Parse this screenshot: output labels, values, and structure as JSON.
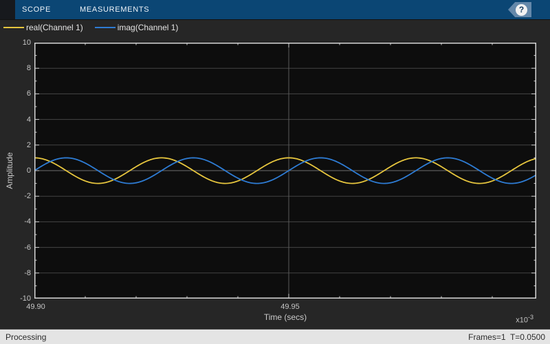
{
  "toolbar": {
    "tabs": [
      {
        "label": "SCOPE"
      },
      {
        "label": "MEASUREMENTS"
      }
    ],
    "help_icon": "?"
  },
  "legend": {
    "items": [
      {
        "label": "real(Channel 1)",
        "color": "#e7c63e"
      },
      {
        "label": "imag(Channel 1)",
        "color": "#2e7cd4"
      }
    ]
  },
  "chart_data": {
    "type": "line",
    "title": "",
    "xlabel": "Time (secs)",
    "ylabel": "Amplitude",
    "x_exponent_base": "x10",
    "x_exponent_power": "-3",
    "xlim_ms": [
      49.9,
      49.99865
    ],
    "ylim": [
      -10,
      10
    ],
    "x_major_ticks_ms": [
      49.9,
      49.95
    ],
    "x_tick_labels": [
      "49.90",
      "49.95"
    ],
    "x_minor_step_ms": 0.01,
    "y_major_step": 2,
    "y_minor_step": 1,
    "y_tick_values": [
      10,
      8,
      6,
      4,
      2,
      0,
      -2,
      -4,
      -6,
      -8,
      -10
    ],
    "y_tick_labels": [
      "10",
      "8",
      "6",
      "4",
      "2",
      "0",
      "-2",
      "-4",
      "-6",
      "-8",
      "-10"
    ],
    "grid": true,
    "legend_position": "top-left",
    "colors": {
      "axes_background": "#0d0d0d",
      "grid": "#454545",
      "zero_line": "#707070",
      "vertical_grid": "#5c5c5c",
      "box": "#d6d6d6",
      "ticks": "#cfcfcf"
    },
    "series": [
      {
        "name": "real(Channel 1)",
        "color": "#e7c63e",
        "waveform": "cosine",
        "amplitude": 1,
        "frequency_hz": 40000,
        "phase_deg": 0
      },
      {
        "name": "imag(Channel 1)",
        "color": "#2e7cd4",
        "waveform": "sine",
        "amplitude": 1,
        "frequency_hz": 40000,
        "phase_deg": 0
      }
    ]
  },
  "status_bar": {
    "left": "Processing",
    "right": "Frames=1  T=0.0500"
  }
}
